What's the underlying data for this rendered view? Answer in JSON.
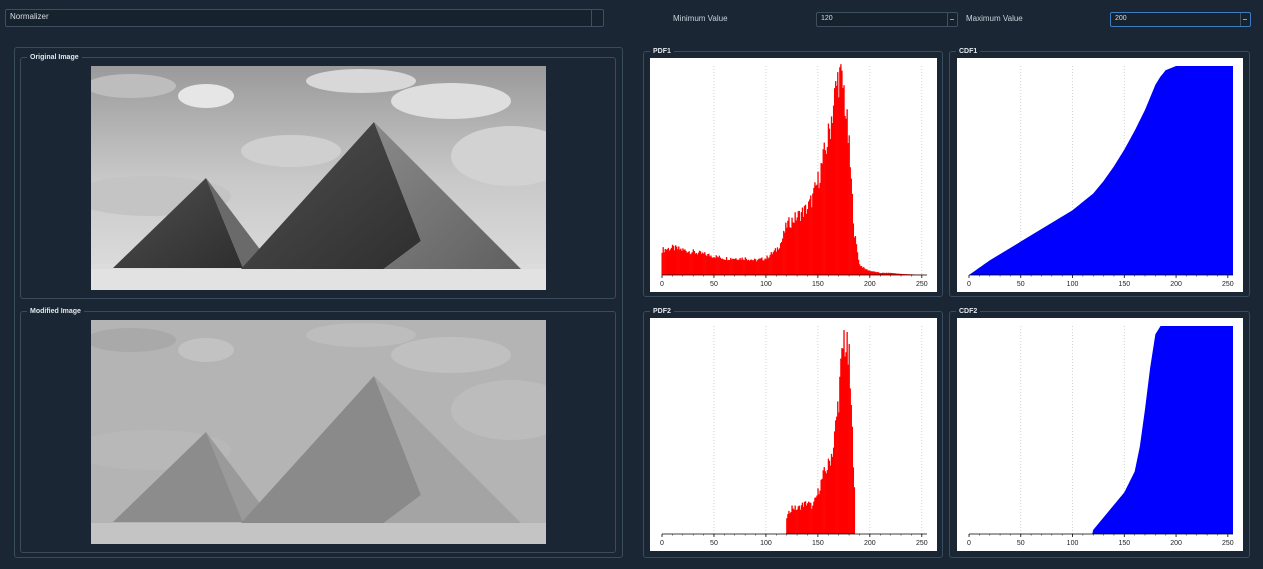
{
  "toolbar": {
    "mode_value": "Normalizer",
    "min_label": "Minimum Value",
    "min_value": "120",
    "max_label": "Maximum Value",
    "max_value": "200"
  },
  "images": {
    "original_title": "Original Image",
    "modified_title": "Modified Image"
  },
  "plots": {
    "pdf1_title": "PDF1",
    "cdf1_title": "CDF1",
    "pdf2_title": "PDF2",
    "cdf2_title": "CDF2",
    "x_ticks": [
      "0",
      "50",
      "100",
      "150",
      "200",
      "250"
    ]
  },
  "colors": {
    "pdf": "#ff0000",
    "cdf": "#0000ff",
    "background": "#1a2633"
  },
  "chart_data": [
    {
      "id": "pdf1",
      "type": "bar",
      "title": "PDF1",
      "xlim": [
        0,
        255
      ],
      "color": "#ff0000",
      "x": [
        0,
        10,
        20,
        30,
        40,
        50,
        60,
        70,
        80,
        90,
        100,
        110,
        115,
        120,
        125,
        130,
        135,
        140,
        145,
        150,
        155,
        160,
        165,
        170,
        175,
        180,
        185,
        190,
        195,
        200,
        210,
        220,
        230,
        255
      ],
      "y": [
        0.12,
        0.13,
        0.12,
        0.11,
        0.1,
        0.09,
        0.08,
        0.08,
        0.08,
        0.07,
        0.08,
        0.12,
        0.16,
        0.24,
        0.26,
        0.28,
        0.3,
        0.32,
        0.37,
        0.45,
        0.55,
        0.66,
        0.82,
        0.96,
        0.88,
        0.6,
        0.2,
        0.05,
        0.03,
        0.02,
        0.01,
        0.01,
        0.005,
        0
      ]
    },
    {
      "id": "cdf1",
      "type": "area",
      "title": "CDF1",
      "xlim": [
        0,
        255
      ],
      "color": "#0000ff",
      "x": [
        0,
        20,
        40,
        60,
        80,
        100,
        120,
        130,
        140,
        150,
        160,
        170,
        175,
        180,
        185,
        190,
        195,
        200,
        210,
        255
      ],
      "y": [
        0,
        0.07,
        0.13,
        0.19,
        0.25,
        0.31,
        0.39,
        0.45,
        0.52,
        0.6,
        0.69,
        0.79,
        0.85,
        0.91,
        0.95,
        0.98,
        0.99,
        1.0,
        1.0,
        1.0
      ]
    },
    {
      "id": "pdf2",
      "type": "bar",
      "title": "PDF2",
      "xlim": [
        0,
        255
      ],
      "color": "#ff0000",
      "x": [
        0,
        119,
        120,
        125,
        130,
        135,
        140,
        145,
        150,
        155,
        160,
        165,
        170,
        175,
        180,
        185,
        186,
        255
      ],
      "y": [
        0,
        0,
        0.08,
        0.13,
        0.12,
        0.14,
        0.15,
        0.13,
        0.2,
        0.28,
        0.33,
        0.42,
        0.66,
        0.95,
        0.82,
        0.25,
        0,
        0
      ]
    },
    {
      "id": "cdf2",
      "type": "area",
      "title": "CDF2",
      "xlim": [
        0,
        255
      ],
      "color": "#0000ff",
      "x": [
        0,
        119,
        120,
        130,
        140,
        150,
        160,
        165,
        170,
        175,
        180,
        185,
        190,
        200,
        255
      ],
      "y": [
        0,
        0,
        0.02,
        0.08,
        0.14,
        0.2,
        0.3,
        0.42,
        0.6,
        0.8,
        0.96,
        1.0,
        1.0,
        1.0,
        1.0
      ]
    }
  ]
}
